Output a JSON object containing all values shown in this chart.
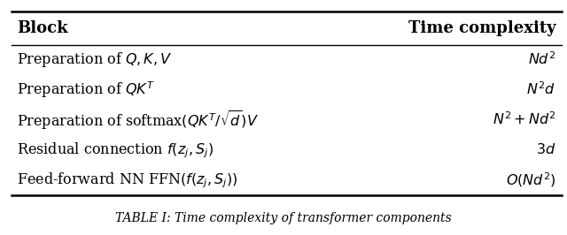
{
  "col_headers": [
    "Block",
    "Time complexity"
  ],
  "rows": [
    [
      "Preparation of $Q, K, V$",
      "$Nd^2$"
    ],
    [
      "Preparation of $QK^T$",
      "$N^2d$"
    ],
    [
      "Preparation of softmax$(QK^T/\\sqrt{d})V$",
      "$N^2 + Nd^2$"
    ],
    [
      "Residual connection $f(z_j, S_j)$",
      "$3d$"
    ],
    [
      "Feed-forward NN FFN$(f(z_j, S_j))$",
      "$O(Nd^2)$"
    ]
  ],
  "caption": "TABLE I: Time complexity of transformer components",
  "bg_color": "#ffffff",
  "text_color": "#000000",
  "header_fontsize": 13,
  "row_fontsize": 11.5,
  "caption_fontsize": 10
}
